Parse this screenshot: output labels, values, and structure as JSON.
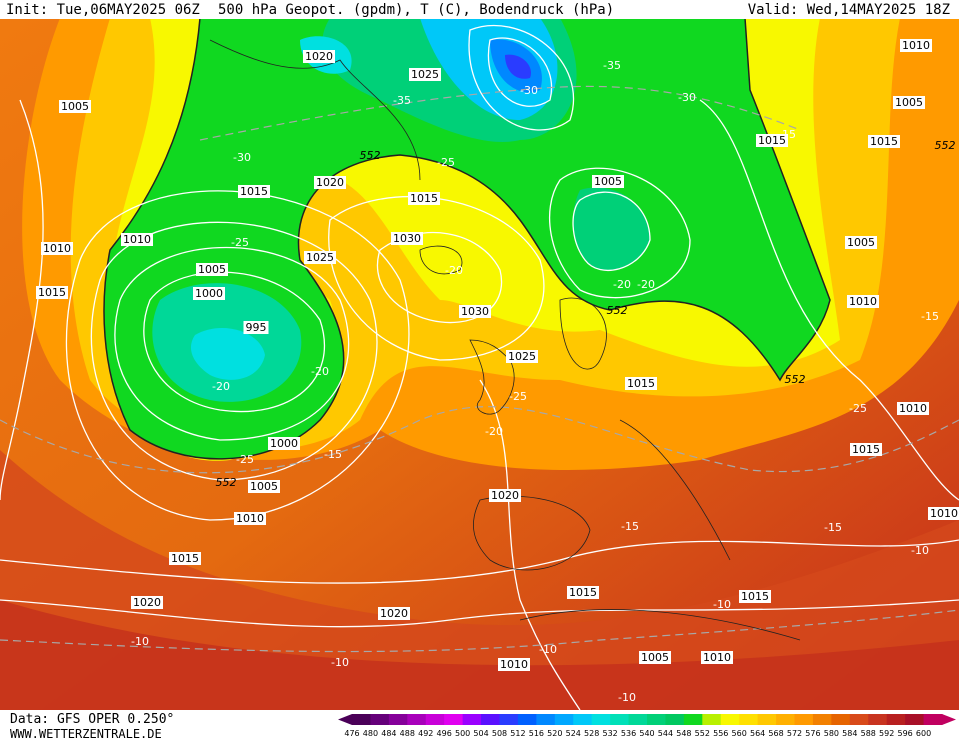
{
  "header": {
    "init": "Init: Tue,06MAY2025 06Z",
    "title": "500 hPa Geopot. (gpdm), T (C), Bodendruck (hPa)",
    "valid": "Valid: Wed,14MAY2025 18Z"
  },
  "footer": {
    "source": "Data: GFS OPER 0.250°",
    "site": "WWW.WETTERZENTRALE.DE"
  },
  "colorbar": {
    "ticks": [
      476,
      480,
      484,
      488,
      492,
      496,
      500,
      504,
      508,
      512,
      516,
      520,
      524,
      528,
      532,
      536,
      540,
      544,
      548,
      552,
      556,
      560,
      564,
      568,
      572,
      576,
      580,
      584,
      588,
      592,
      596,
      600
    ],
    "colors": [
      "#4a0058",
      "#65007a",
      "#85009a",
      "#a800bb",
      "#c800d8",
      "#e000f0",
      "#9a00ff",
      "#5a10ff",
      "#2a3cff",
      "#0060ff",
      "#0088ff",
      "#00a8ff",
      "#00c8f8",
      "#00e0e0",
      "#00e0b8",
      "#00d898",
      "#00d078",
      "#00c860",
      "#10d820",
      "#b8f000",
      "#f8f800",
      "#ffe000",
      "#ffc800",
      "#ffb000",
      "#ff9a00",
      "#f28000",
      "#e66400",
      "#d84a1a",
      "#c83420",
      "#b82020",
      "#a81028",
      "#c00060"
    ]
  },
  "map": {
    "labels": [
      "1005",
      "1025",
      "1020",
      "1010",
      "1005",
      "1015",
      "1010",
      "1015",
      "1005",
      "1000",
      "995",
      "1020",
      "1015",
      "1025",
      "1030",
      "1030",
      "1025",
      "1015",
      "1005",
      "1010",
      "1015",
      "1005",
      "1010",
      "1015",
      "1010",
      "1015",
      "1000",
      "1005",
      "1010",
      "1015",
      "1020",
      "1020",
      "1020",
      "1015",
      "1015",
      "1010",
      "1005",
      "1010",
      "1010",
      "-35",
      "-30",
      "-35",
      "-30",
      "-25",
      "-30",
      "-25",
      "-20",
      "-20",
      "-25",
      "-20",
      "-25",
      "-20",
      "-15",
      "-20",
      "-20",
      "-15",
      "-15",
      "-25",
      "-15",
      "-10",
      "-10",
      "-10",
      "-10",
      "-10",
      "-10",
      "-15",
      "552",
      "552",
      "552",
      "552",
      "552"
    ]
  }
}
